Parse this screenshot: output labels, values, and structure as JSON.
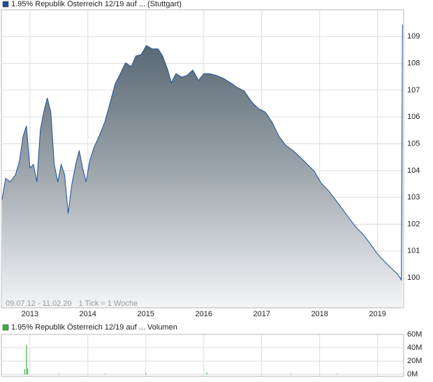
{
  "chart_data": [
    {
      "type": "area",
      "annotations": [
        "09.07.12 - 11.02.20",
        "1 Tick = 1 Woche"
      ],
      "x": [
        2012.52,
        2012.58,
        2012.66,
        2012.75,
        2012.82,
        2012.88,
        2012.94,
        2013.0,
        2013.06,
        2013.12,
        2013.18,
        2013.24,
        2013.3,
        2013.36,
        2013.42,
        2013.48,
        2013.54,
        2013.6,
        2013.66,
        2013.72,
        2013.79,
        2013.85,
        2013.91,
        2013.97,
        2014.03,
        2014.11,
        2014.19,
        2014.29,
        2014.39,
        2014.47,
        2014.56,
        2014.65,
        2014.75,
        2014.83,
        2014.92,
        2015.01,
        2015.11,
        2015.21,
        2015.29,
        2015.38,
        2015.44,
        2015.52,
        2015.62,
        2015.71,
        2015.81,
        2015.91,
        2016.0,
        2016.1,
        2016.22,
        2016.34,
        2016.46,
        2016.58,
        2016.7,
        2016.82,
        2016.94,
        2017.06,
        2017.18,
        2017.3,
        2017.42,
        2017.54,
        2017.67,
        2017.79,
        2017.91,
        2018.03,
        2018.15,
        2018.27,
        2018.39,
        2018.51,
        2018.63,
        2018.75,
        2018.87,
        2018.99,
        2019.11,
        2019.23,
        2019.35,
        2019.41,
        2019.42,
        2019.43
      ],
      "series": [
        {
          "name": "1.95% Republik Österreich 12/19 auf ... (Stuttgart)",
          "color": "#1f4e9c",
          "values": [
            102.92,
            103.71,
            103.58,
            103.84,
            104.36,
            105.27,
            105.67,
            104.1,
            104.23,
            103.58,
            105.53,
            106.19,
            106.71,
            106.19,
            104.23,
            103.58,
            104.23,
            103.84,
            102.4,
            103.45,
            104.23,
            104.75,
            104.1,
            103.58,
            104.36,
            104.88,
            105.27,
            105.8,
            106.58,
            107.23,
            107.62,
            108.02,
            107.88,
            108.28,
            108.33,
            108.67,
            108.54,
            108.54,
            108.28,
            107.75,
            107.28,
            107.62,
            107.49,
            107.55,
            107.75,
            107.36,
            107.62,
            107.62,
            107.55,
            107.44,
            107.28,
            107.1,
            106.97,
            106.58,
            106.32,
            106.19,
            105.8,
            105.27,
            104.93,
            104.75,
            104.49,
            104.23,
            103.97,
            103.52,
            103.26,
            102.92,
            102.58,
            102.22,
            101.88,
            101.62,
            101.28,
            100.91,
            100.63,
            100.37,
            100.13,
            99.92,
            104.75,
            109.45
          ]
        }
      ],
      "xlim": [
        2012.52,
        2019.45
      ],
      "xticks": [
        2013,
        2014,
        2015,
        2016,
        2017,
        2018,
        2019
      ],
      "ylim": [
        98.88,
        110
      ],
      "yticks": [
        100,
        101,
        102,
        103,
        104,
        105,
        106,
        107,
        108,
        109
      ],
      "grid": true
    },
    {
      "type": "bar",
      "x": [
        2012.91,
        2012.94,
        2012.96,
        2013.5,
        2014.3,
        2015.0,
        2016.05,
        2017.5,
        2018.3
      ],
      "series": [
        {
          "name": "1.95% Republik Österreich 12/19 auf ... Volumen",
          "color": "#3cb043",
          "values": [
            8,
            44,
            9,
            1,
            1,
            2,
            3,
            1,
            1
          ]
        }
      ],
      "xlim": [
        2012.52,
        2019.45
      ],
      "ylim": [
        -3,
        60
      ],
      "yticks": [
        {
          "value": 0,
          "label": "0M"
        },
        {
          "value": 20,
          "label": "20M"
        },
        {
          "value": 40,
          "label": "40M"
        },
        {
          "value": 60,
          "label": "60M"
        }
      ],
      "grid": true
    }
  ]
}
